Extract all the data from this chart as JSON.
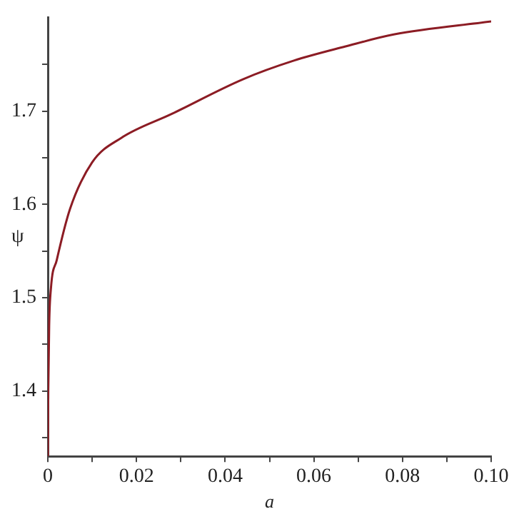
{
  "chart_data": {
    "type": "line",
    "xlabel": "a",
    "ylabel": "ψ",
    "x": [
      0,
      0.0001,
      0.0003,
      0.0007,
      0.002,
      0.005,
      0.01,
      0.0165,
      0.028,
      0.044,
      0.0555,
      0.067,
      0.078,
      0.1
    ],
    "series": [
      {
        "color": "#8c1c24",
        "values": [
          1.33,
          1.4,
          1.47,
          1.51,
          1.54,
          1.595,
          1.645,
          1.671,
          1.697,
          1.734,
          1.754,
          1.769,
          1.782,
          1.796
        ]
      }
    ],
    "xlim": [
      0,
      0.1
    ],
    "ylim": [
      1.33,
      1.8
    ],
    "xticks": [
      0,
      {
        "value": 0.01,
        "label": null
      },
      {
        "value": 0.02,
        "label": "0.02"
      },
      {
        "value": 0.03,
        "label": null
      },
      {
        "value": 0.04,
        "label": "0.04"
      },
      {
        "value": 0.05,
        "label": null
      },
      {
        "value": 0.06,
        "label": "0.06"
      },
      {
        "value": 0.07,
        "label": null
      },
      {
        "value": 0.08,
        "label": "0.08"
      },
      {
        "value": 0.09,
        "label": null
      },
      {
        "value": 0.1,
        "label": "0.10"
      }
    ],
    "yticks": [
      {
        "value": 1.35,
        "label": null
      },
      {
        "value": 1.4,
        "label": "1.4"
      },
      {
        "value": 1.45,
        "label": null
      },
      {
        "value": 1.5,
        "label": "1.5"
      },
      {
        "value": 1.55,
        "label": null
      },
      {
        "value": 1.6,
        "label": "1.6"
      },
      {
        "value": 1.65,
        "label": null
      },
      {
        "value": 1.7,
        "label": "1.7"
      },
      {
        "value": 1.75,
        "label": null
      }
    ],
    "grid": false,
    "legend": false,
    "marker": "none",
    "line_style": "solid"
  }
}
